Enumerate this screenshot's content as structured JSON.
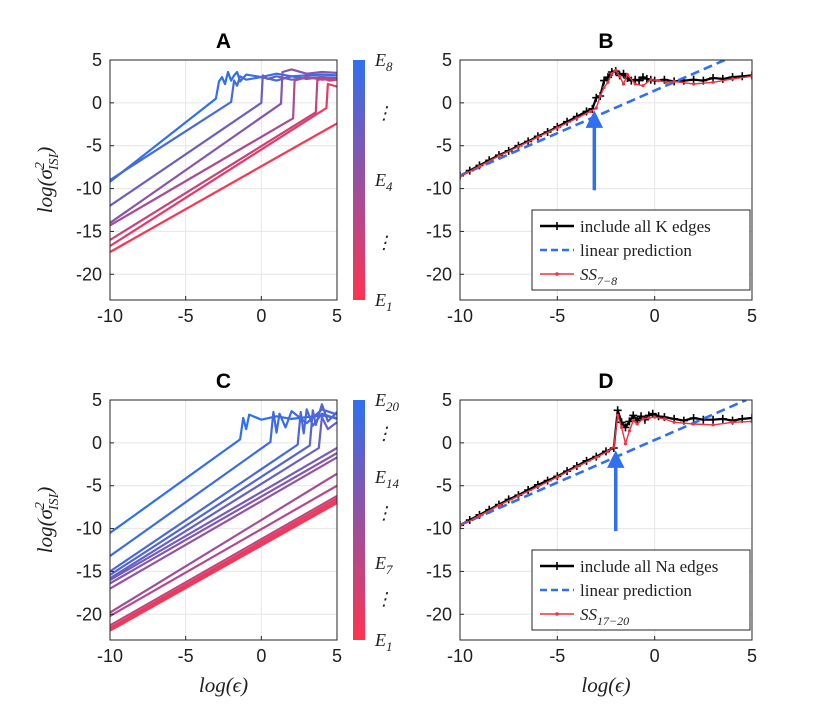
{
  "chart_data": [
    {
      "panel": "A",
      "type": "line",
      "title": "A",
      "xlabel": "",
      "ylabel": "log(σ²_ISI)",
      "xlim": [
        -10,
        5
      ],
      "ylim": [
        -23,
        5
      ],
      "xticks": [
        -10,
        -5,
        0,
        5
      ],
      "yticks": [
        5,
        0,
        -5,
        -10,
        -15,
        -20
      ],
      "grid": true,
      "colormap": {
        "low": "#ff3350",
        "high": "#2f6ff0"
      },
      "colorbar_labels": [
        {
          "text": "E",
          "sub": "8",
          "level": 1.0
        },
        {
          "text": "⋮",
          "sub": "",
          "level": 0.78
        },
        {
          "text": "E",
          "sub": "4",
          "level": 0.5
        },
        {
          "text": "⋮",
          "sub": "",
          "level": 0.24
        },
        {
          "text": "E",
          "sub": "1",
          "level": 0.0
        }
      ],
      "series": [
        {
          "level": 1.0,
          "x": [
            -10,
            -3.0,
            -2.8,
            -2.6,
            -2.4,
            -2.2,
            -2.0,
            -1.8,
            -1.6,
            -1.4,
            -1.0,
            0,
            1,
            2,
            3,
            4,
            5
          ],
          "y": [
            -9.2,
            0.5,
            2.5,
            3.0,
            2.2,
            3.6,
            2.6,
            3.2,
            3.6,
            2.5,
            3.3,
            3.0,
            3.4,
            3.1,
            3.2,
            3.3,
            3.2
          ]
        },
        {
          "level": 0.9,
          "x": [
            -10,
            -2.0,
            -1.8,
            -1.6,
            -1.4,
            -1.0,
            0,
            1,
            2,
            3,
            4,
            5
          ],
          "y": [
            -9.0,
            0.1,
            2.6,
            2.0,
            3.1,
            2.7,
            3.0,
            2.6,
            3.1,
            2.8,
            3.0,
            2.9
          ]
        },
        {
          "level": 0.72,
          "x": [
            -10,
            0.0,
            0.1,
            0.4,
            1,
            2,
            3,
            4,
            5
          ],
          "y": [
            -12.0,
            0.0,
            3.2,
            2.8,
            3.1,
            2.7,
            2.9,
            3.0,
            2.8
          ]
        },
        {
          "level": 0.58,
          "x": [
            -10,
            1.3,
            1.4,
            2,
            3,
            4,
            5
          ],
          "y": [
            -14.0,
            -0.1,
            3.6,
            3.9,
            3.4,
            3.6,
            3.5
          ]
        },
        {
          "level": 0.42,
          "x": [
            -10,
            2.1,
            2.2,
            3,
            4,
            5
          ],
          "y": [
            -14.3,
            -1.8,
            2.6,
            3.0,
            2.7,
            2.8
          ]
        },
        {
          "level": 0.25,
          "x": [
            -10,
            3.6,
            3.7,
            4,
            4.5,
            5
          ],
          "y": [
            -16.0,
            -1.1,
            2.6,
            2.9,
            2.6,
            2.7
          ]
        },
        {
          "level": 0.12,
          "x": [
            -10,
            4.3,
            4.4,
            5
          ],
          "y": [
            -16.7,
            -0.6,
            2.2,
            1.9
          ]
        },
        {
          "level": 0.0,
          "x": [
            -10,
            5
          ],
          "y": [
            -17.4,
            -2.4
          ]
        }
      ]
    },
    {
      "panel": "B",
      "type": "line",
      "title": "B",
      "xlabel": "",
      "ylabel": "",
      "xlim": [
        -10,
        5
      ],
      "ylim": [
        -23,
        5
      ],
      "xticks": [
        -10,
        -5,
        0,
        5
      ],
      "yticks": [
        5,
        0,
        -5,
        -10,
        -15,
        -20
      ],
      "grid": true,
      "arrow": {
        "x": -3.1,
        "y_from": -10.2,
        "y_to": -1.2,
        "color": "#2f6ff0"
      },
      "legend": {
        "position": "bottom-right",
        "entries": [
          {
            "key": "black",
            "text": "include all K edges",
            "sub": ""
          },
          {
            "key": "blue",
            "text": "linear prediction",
            "sub": ""
          },
          {
            "key": "red",
            "text": "SS",
            "sub": "7−8"
          }
        ]
      },
      "series": [
        {
          "key": "black",
          "color": "#000000",
          "x": [
            -10,
            -9.5,
            -9,
            -8.5,
            -8,
            -7.5,
            -7,
            -6.5,
            -6,
            -5.5,
            -5,
            -4.5,
            -4,
            -3.5,
            -3.2,
            -3.0,
            -2.8,
            -2.6,
            -2.4,
            -2.2,
            -2.0,
            -1.8,
            -1.6,
            -1.4,
            -1.2,
            -1.0,
            -0.8,
            -0.6,
            -0.4,
            -0.2,
            0,
            0.5,
            1,
            1.5,
            2,
            2.5,
            3,
            3.5,
            4,
            4.5,
            5
          ],
          "y": [
            -8.5,
            -7.9,
            -7.3,
            -6.7,
            -6.1,
            -5.6,
            -5.0,
            -4.5,
            -3.9,
            -3.4,
            -2.8,
            -2.2,
            -1.6,
            -1.0,
            -0.7,
            0.6,
            0.8,
            2.6,
            3.0,
            3.6,
            3.7,
            3.2,
            3.4,
            2.9,
            2.6,
            2.7,
            2.6,
            3.0,
            2.8,
            2.7,
            2.6,
            2.7,
            2.5,
            2.6,
            2.7,
            2.6,
            2.9,
            2.8,
            3.0,
            3.1,
            3.2
          ]
        },
        {
          "key": "blue",
          "color": "#2f6ff0",
          "dashed": true,
          "x": [
            -10,
            3.6
          ],
          "y": [
            -8.5,
            5.0
          ]
        },
        {
          "key": "red",
          "color": "#ee3344",
          "x": [
            -10,
            -9,
            -8,
            -7,
            -6,
            -5,
            -4,
            -3.3,
            -3.0,
            -2.8,
            -2.6,
            -2.4,
            -2.2,
            -2.0,
            -1.8,
            -1.6,
            -1.4,
            -1.0,
            -0.6,
            -0.2,
            0.2,
            0.6,
            1,
            2,
            3,
            4,
            5
          ],
          "y": [
            -8.6,
            -7.4,
            -6.2,
            -5.1,
            -4.0,
            -2.9,
            -1.8,
            -1.0,
            -0.6,
            0.8,
            1.8,
            2.4,
            3.4,
            3.8,
            3.1,
            2.2,
            3.3,
            2.2,
            2.0,
            2.7,
            2.6,
            2.4,
            2.5,
            2.2,
            2.4,
            2.8,
            3.1
          ]
        }
      ]
    },
    {
      "panel": "C",
      "type": "line",
      "title": "C",
      "xlabel": "log(ϵ)",
      "ylabel": "log(σ²_ISI)",
      "xlim": [
        -10,
        5
      ],
      "ylim": [
        -23,
        5
      ],
      "xticks": [
        -10,
        -5,
        0,
        5
      ],
      "yticks": [
        5,
        0,
        -5,
        -10,
        -15,
        -20
      ],
      "grid": true,
      "colormap": {
        "low": "#ff3350",
        "high": "#2f6ff0"
      },
      "colorbar_labels": [
        {
          "text": "E",
          "sub": "20",
          "level": 1.0
        },
        {
          "text": "⋮",
          "sub": "",
          "level": 0.86
        },
        {
          "text": "E",
          "sub": "14",
          "level": 0.68
        },
        {
          "text": "⋮",
          "sub": "",
          "level": 0.53
        },
        {
          "text": "E",
          "sub": "7",
          "level": 0.32
        },
        {
          "text": "⋮",
          "sub": "",
          "level": 0.17
        },
        {
          "text": "E",
          "sub": "1",
          "level": 0.0
        }
      ],
      "series": [
        {
          "level": 1.0,
          "x": [
            -10,
            -1.4,
            -1.2,
            -1.0,
            -0.8,
            0,
            1,
            2,
            3,
            4,
            5
          ],
          "y": [
            -10.5,
            0.4,
            2.9,
            1.6,
            3.3,
            2.7,
            3.1,
            2.8,
            3.0,
            3.2,
            2.9
          ]
        },
        {
          "level": 0.94,
          "x": [
            -10,
            0.6,
            0.8,
            1.0,
            1.2,
            1.6,
            2,
            3,
            4,
            5
          ],
          "y": [
            -13.2,
            0.1,
            3.6,
            1.2,
            3.4,
            1.8,
            3.7,
            2.3,
            3.9,
            3.3
          ]
        },
        {
          "level": 0.88,
          "x": [
            -10,
            2.4,
            2.6,
            2.8,
            3.0,
            3.4,
            4,
            5
          ],
          "y": [
            -15.0,
            -0.2,
            3.6,
            1.1,
            3.9,
            2.0,
            3.4,
            2.8
          ]
        },
        {
          "level": 0.82,
          "x": [
            -10,
            3.2,
            3.4,
            3.6,
            4.0,
            4.4,
            5
          ],
          "y": [
            -15.4,
            -0.3,
            3.8,
            2.1,
            4.5,
            2.5,
            3.6
          ]
        },
        {
          "level": 0.75,
          "x": [
            -10,
            3.8,
            4.0,
            4.4,
            5
          ],
          "y": [
            -15.8,
            -0.6,
            3.0,
            1.6,
            2.4
          ]
        },
        {
          "level": 0.68,
          "x": [
            -10,
            5
          ],
          "y": [
            -16.0,
            -0.6
          ]
        },
        {
          "level": 0.6,
          "x": [
            -10,
            5
          ],
          "y": [
            -16.4,
            -1.2
          ]
        },
        {
          "level": 0.52,
          "x": [
            -10,
            5
          ],
          "y": [
            -17.0,
            -1.7
          ]
        },
        {
          "level": 0.44,
          "x": [
            -10,
            5
          ],
          "y": [
            -19.8,
            -3.6
          ]
        },
        {
          "level": 0.36,
          "x": [
            -10,
            5
          ],
          "y": [
            -20.2,
            -5.0
          ]
        },
        {
          "level": 0.26,
          "x": [
            -10,
            5
          ],
          "y": [
            -21.3,
            -6.2
          ]
        },
        {
          "level": 0.16,
          "x": [
            -10,
            5
          ],
          "y": [
            -21.6,
            -6.5
          ]
        },
        {
          "level": 0.06,
          "x": [
            -10,
            5
          ],
          "y": [
            -21.8,
            -6.8
          ]
        },
        {
          "level": 0.0,
          "x": [
            -10,
            5
          ],
          "y": [
            -21.9,
            -7.0
          ]
        }
      ]
    },
    {
      "panel": "D",
      "type": "line",
      "title": "D",
      "xlabel": "log(ϵ)",
      "ylabel": "",
      "xlim": [
        -10,
        5
      ],
      "ylim": [
        -23,
        5
      ],
      "xticks": [
        -10,
        -5,
        0,
        5
      ],
      "yticks": [
        5,
        0,
        -5,
        -10,
        -15,
        -20
      ],
      "grid": true,
      "arrow": {
        "x": -2.0,
        "y_from": -10.3,
        "y_to": -1.2,
        "color": "#2f6ff0"
      },
      "legend": {
        "position": "bottom-right",
        "entries": [
          {
            "key": "black",
            "text": "include all Na edges",
            "sub": ""
          },
          {
            "key": "blue",
            "text": "linear prediction",
            "sub": ""
          },
          {
            "key": "red",
            "text": "SS",
            "sub": "17−20"
          }
        ]
      },
      "series": [
        {
          "key": "black",
          "color": "#000000",
          "x": [
            -10,
            -9.5,
            -9,
            -8.5,
            -8,
            -7.5,
            -7,
            -6.5,
            -6,
            -5.5,
            -5,
            -4.5,
            -4,
            -3.5,
            -3,
            -2.5,
            -2.1,
            -1.9,
            -1.7,
            -1.5,
            -1.3,
            -1.1,
            -0.9,
            -0.7,
            -0.5,
            -0.3,
            -0.1,
            0.2,
            0.5,
            1,
            1.5,
            2,
            2.5,
            3,
            3.5,
            4,
            4.5,
            5
          ],
          "y": [
            -9.6,
            -9.0,
            -8.4,
            -7.8,
            -7.2,
            -6.6,
            -6.1,
            -5.5,
            -4.9,
            -4.4,
            -3.9,
            -3.3,
            -2.7,
            -2.1,
            -1.6,
            -1.0,
            -0.6,
            3.8,
            2.4,
            1.8,
            2.5,
            3.2,
            2.6,
            3.1,
            2.7,
            3.2,
            3.4,
            3.1,
            3.0,
            2.8,
            2.6,
            2.9,
            2.7,
            2.7,
            2.8,
            2.6,
            2.8,
            2.9
          ]
        },
        {
          "key": "blue",
          "color": "#2f6ff0",
          "dashed": true,
          "x": [
            -10,
            4.7
          ],
          "y": [
            -9.6,
            5.0
          ]
        },
        {
          "key": "red",
          "color": "#ee3344",
          "x": [
            -10,
            -9,
            -8,
            -7,
            -6,
            -5,
            -4,
            -3,
            -2.4,
            -2.1,
            -1.9,
            -1.7,
            -1.5,
            -1.3,
            -1.1,
            -0.9,
            -0.6,
            -0.3,
            0,
            0.5,
            1,
            2,
            3,
            4,
            5
          ],
          "y": [
            -9.7,
            -8.5,
            -7.3,
            -6.2,
            -5.1,
            -4.0,
            -2.8,
            -1.7,
            -1.0,
            -0.5,
            3.2,
            1.8,
            -0.1,
            1.4,
            2.6,
            2.2,
            2.8,
            2.9,
            3.0,
            2.8,
            2.4,
            2.2,
            2.1,
            2.4,
            2.5
          ]
        }
      ]
    }
  ]
}
